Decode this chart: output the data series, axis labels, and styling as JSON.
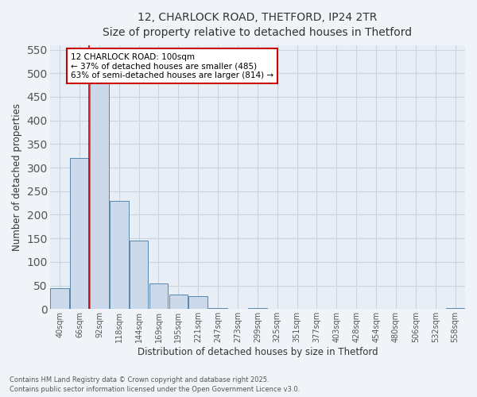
{
  "title_line1": "12, CHARLOCK ROAD, THETFORD, IP24 2TR",
  "title_line2": "Size of property relative to detached houses in Thetford",
  "xlabel": "Distribution of detached houses by size in Thetford",
  "ylabel": "Number of detached properties",
  "footer_line1": "Contains HM Land Registry data © Crown copyright and database right 2025.",
  "footer_line2": "Contains public sector information licensed under the Open Government Licence v3.0.",
  "categories": [
    "40sqm",
    "66sqm",
    "92sqm",
    "118sqm",
    "144sqm",
    "169sqm",
    "195sqm",
    "221sqm",
    "247sqm",
    "273sqm",
    "299sqm",
    "325sqm",
    "351sqm",
    "377sqm",
    "403sqm",
    "428sqm",
    "454sqm",
    "480sqm",
    "506sqm",
    "532sqm",
    "558sqm"
  ],
  "values": [
    45,
    320,
    485,
    230,
    145,
    55,
    30,
    28,
    3,
    0,
    3,
    0,
    0,
    0,
    0,
    0,
    0,
    0,
    0,
    0,
    3
  ],
  "bar_color": "#ccd9ea",
  "bar_edge_color": "#5588aa",
  "grid_color": "#c8d4e0",
  "bg_color": "#e8eef5",
  "fig_bg_color": "#f0f4f8",
  "red_line_x": 1.5,
  "annotation_text": "12 CHARLOCK ROAD: 100sqm\n← 37% of detached houses are smaller (485)\n63% of semi-detached houses are larger (814) →",
  "annotation_box_color": "#ffffff",
  "annotation_border_color": "#cc0000",
  "ylim": [
    0,
    560
  ],
  "yticks": [
    0,
    50,
    100,
    150,
    200,
    250,
    300,
    350,
    400,
    450,
    500,
    550
  ]
}
